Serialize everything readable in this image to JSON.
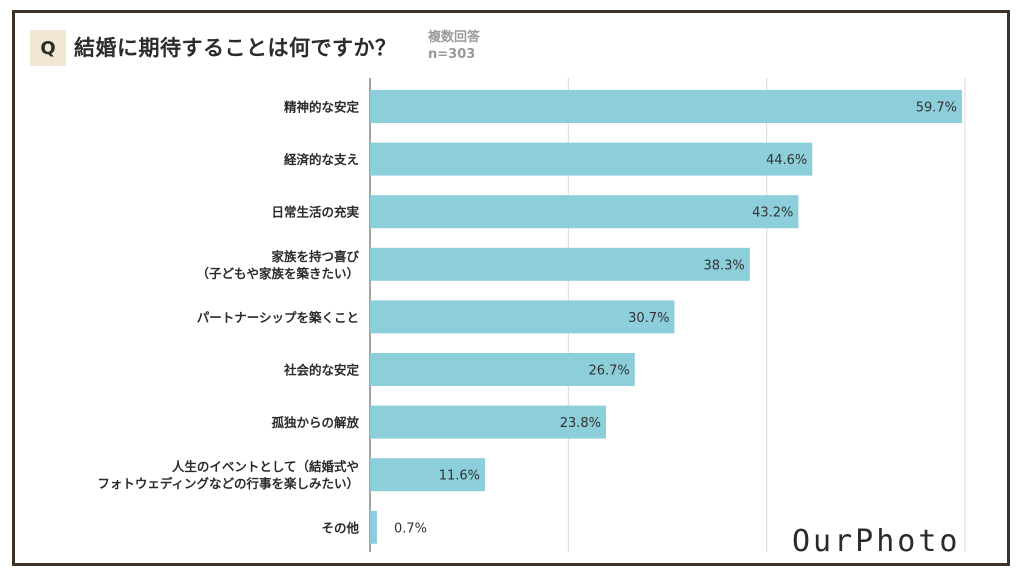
{
  "question": {
    "badge": "Q",
    "title": "結婚に期待することは何ですか？",
    "note": "複数回答",
    "sample": "n=303"
  },
  "brand": "OurPhoto",
  "colors": {
    "bar": "#8ccfdb",
    "frame": "#3c3228",
    "badge_bg": "#f1e7d4"
  },
  "chart_data": {
    "type": "bar",
    "orientation": "horizontal",
    "categories": [
      [
        "精神的な安定"
      ],
      [
        "経済的な支え"
      ],
      [
        "日常生活の充実"
      ],
      [
        "家族を持つ喜び",
        "（子どもや家族を築きたい）"
      ],
      [
        "パートナーシップを築くこと"
      ],
      [
        "社会的な安定"
      ],
      [
        "孤独からの解放"
      ],
      [
        "人生のイベントとして（結婚式や",
        "フォトウェディングなどの行事を楽しみたい）"
      ],
      [
        "その他"
      ]
    ],
    "values": [
      59.7,
      44.6,
      43.2,
      38.3,
      30.7,
      26.7,
      23.8,
      11.6,
      0.7
    ],
    "value_labels": [
      "59.7%",
      "44.6%",
      "43.2%",
      "38.3%",
      "30.7%",
      "26.7%",
      "23.8%",
      "11.6%",
      "0.7%"
    ],
    "xlim": [
      0,
      60
    ],
    "grid": true,
    "title": "",
    "xlabel": "",
    "ylabel": ""
  }
}
